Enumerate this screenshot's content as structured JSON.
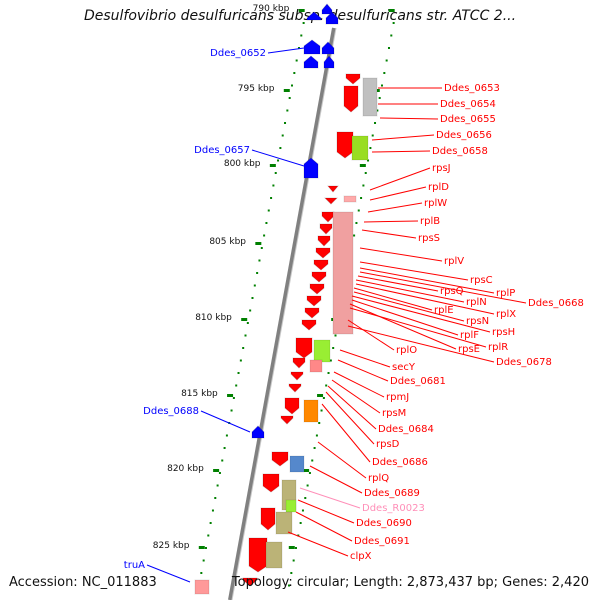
{
  "title": "Desulfovibrio desulfuricans subsp. desulfuricans str. ATCC 2...",
  "footer": {
    "accession": "Accession: NC_011883",
    "summary": "Topology: circular; Length: 2,873,437 bp; Genes: 2,420"
  },
  "colors": {
    "forward_gene": "#0000ff",
    "reverse_gene": "#ff0000",
    "rna": "#ff8fb8",
    "backbone": "#808080",
    "tick": "#008000"
  },
  "axis_labels": [
    "790 kbp",
    "795 kbp",
    "800 kbp",
    "805 kbp",
    "810 kbp",
    "815 kbp",
    "820 kbp",
    "825 kbp"
  ],
  "left_genes": [
    "Ddes_0652",
    "Ddes_0657",
    "Ddes_0688",
    "truA"
  ],
  "right_genes": [
    "Ddes_0653",
    "Ddes_0654",
    "Ddes_0655",
    "Ddes_0656",
    "Ddes_0658",
    "rpsJ",
    "rplD",
    "rplW",
    "rplB",
    "rpsS",
    "rplV",
    "rpsC",
    "rplP",
    "Ddes_0668",
    "rpsQ",
    "rplN",
    "rplX",
    "rplE",
    "rpsN",
    "rpsH",
    "rplF",
    "rpsE",
    "rplR",
    "rplO",
    "Ddes_0678",
    "secY",
    "Ddes_0681",
    "rpmJ",
    "rpsM",
    "Ddes_0684",
    "rpsD",
    "Ddes_0686",
    "rplQ",
    "Ddes_0689",
    "Ddes_R0023",
    "Ddes_0690",
    "Ddes_0691",
    "clpX"
  ]
}
